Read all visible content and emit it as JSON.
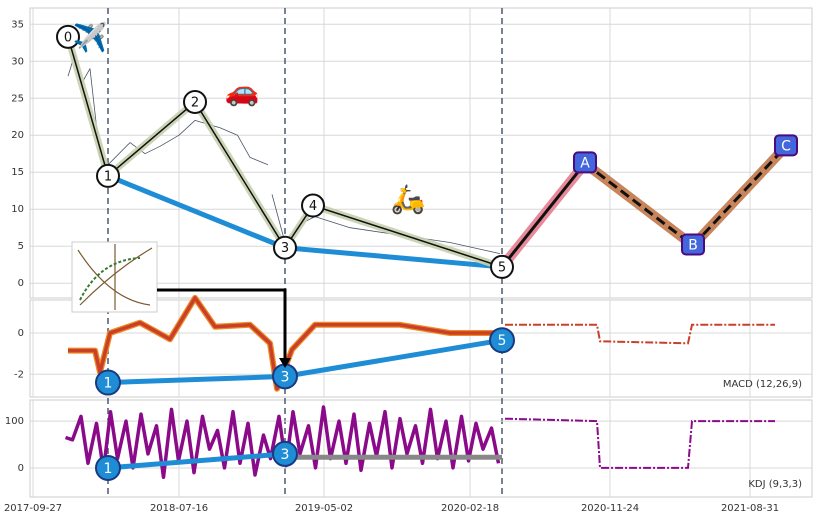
{
  "chart_data": [
    {
      "type": "line",
      "panel": "price",
      "xlim": [
        "2017-09-21",
        "2022-01-02"
      ],
      "ylim": [
        -2,
        37.2
      ],
      "yticks": [
        0,
        5,
        10,
        15,
        20,
        25,
        30,
        35
      ],
      "grid": true,
      "x": [
        "2017-12-06",
        "2017-12-20",
        "2018-01-02",
        "2018-01-19",
        "2018-02-08",
        "2018-02-24",
        "2018-04-09",
        "2018-05-09",
        "2018-06-08",
        "2018-07-16",
        "2018-08-17",
        "2018-10-06",
        "2018-11-10",
        "2018-12-05",
        "2019-01-10",
        "2019-01-12",
        "2019-01-18",
        "2019-02-13",
        "2019-03-15",
        "2019-04-14",
        "2019-06-23",
        "2019-10-01",
        "2020-01-09",
        "2020-04-18"
      ],
      "values": [
        28,
        31,
        27,
        29,
        17,
        16,
        19,
        17.5,
        18.5,
        20,
        22,
        21,
        20,
        17,
        16,
        null,
        12,
        5.5,
        8,
        9,
        7.5,
        6.5,
        5.5,
        4
      ],
      "color": "#4a5565",
      "waves": {
        "labels": [
          "0",
          "1",
          "2",
          "3",
          "4",
          "5"
        ],
        "x": [
          "2017-12-06",
          "2018-02-24",
          "2018-08-17",
          "2019-02-13",
          "2019-04-10",
          "2020-04-22"
        ],
        "values": [
          33.3,
          14.5,
          24.5,
          4.8,
          10.5,
          2.2
        ]
      },
      "projection": {
        "labels": [
          "A",
          "B",
          "C"
        ],
        "x": [
          "2020-10-05",
          "2021-05-09",
          "2021-11-11"
        ],
        "values": [
          16.2,
          5.1,
          18.5
        ]
      },
      "icons": [
        {
          "text": "✈️",
          "x": "2018-01-19",
          "value": 33
        },
        {
          "text": "🚗",
          "x": "2018-11-19",
          "value": 25.8
        },
        {
          "text": "🛵",
          "x": "2019-10-17",
          "value": 11.2
        }
      ]
    },
    {
      "type": "line",
      "panel": "macd",
      "label": "MACD (12,26,9)",
      "xlim": [
        "2017-09-21",
        "2022-01-02"
      ],
      "ylim": [
        -3.1,
        1.6
      ],
      "yticks": [
        -2,
        0
      ],
      "grid": true,
      "x": [
        "2017-12-06",
        "2018-01-29",
        "2018-02-08",
        "2018-02-28",
        "2018-04-29",
        "2018-06-28",
        "2018-08-17",
        "2018-09-26",
        "2018-12-05",
        "2019-01-14",
        "2019-01-28",
        "2019-02-27",
        "2019-04-14",
        "2019-10-01",
        "2020-01-09",
        "2020-04-18"
      ],
      "values": [
        -0.85,
        -0.85,
        -1.9,
        0,
        0.5,
        -0.3,
        1.7,
        0.3,
        0.4,
        -0.5,
        -2.7,
        -0.8,
        0.4,
        0.4,
        0,
        0
      ],
      "color": "#c8402a",
      "forecast": {
        "x": [
          "2020-04-28",
          "2020-10-29",
          "2020-11-04",
          "2021-04-29",
          "2021-05-07",
          "2021-10-20"
        ],
        "values": [
          0.4,
          0.4,
          -0.4,
          -0.5,
          0.4,
          0.4
        ]
      },
      "markers": {
        "labels": [
          "1",
          "3",
          "5"
        ],
        "x": [
          "2018-02-24",
          "2019-02-13",
          "2020-04-22"
        ],
        "values": [
          -2.4,
          -2.1,
          -0.35
        ]
      }
    },
    {
      "type": "line",
      "panel": "kdj",
      "label": "KDJ (9,3,3)",
      "xlim": [
        "2017-09-21",
        "2022-01-02"
      ],
      "ylim": [
        -62,
        145
      ],
      "yticks": [
        0,
        100
      ],
      "grid": true,
      "xticks": [
        "2017-09-27",
        "2018-07-16",
        "2019-05-02",
        "2020-02-18",
        "2020-11-24",
        "2021-08-31"
      ],
      "x": [
        "2017-12-01",
        "2017-12-15",
        "2018-01-01",
        "2018-01-15",
        "2018-02-01",
        "2018-02-15",
        "2018-03-01",
        "2018-03-15",
        "2018-04-01",
        "2018-04-15",
        "2018-05-01",
        "2018-05-15",
        "2018-06-01",
        "2018-06-15",
        "2018-07-01",
        "2018-07-15",
        "2018-08-01",
        "2018-08-15",
        "2018-09-01",
        "2018-09-15",
        "2018-10-01",
        "2018-10-15",
        "2018-11-01",
        "2018-11-15",
        "2018-12-01",
        "2018-12-15",
        "2019-01-01",
        "2019-01-15",
        "2019-02-01",
        "2019-02-15",
        "2019-03-01",
        "2019-03-15",
        "2019-04-01",
        "2019-04-15",
        "2019-05-01",
        "2019-05-15",
        "2019-06-01",
        "2019-06-15",
        "2019-07-01",
        "2019-07-15",
        "2019-08-01",
        "2019-08-15",
        "2019-09-01",
        "2019-09-15",
        "2019-10-01",
        "2019-10-15",
        "2019-11-01",
        "2019-11-15",
        "2019-12-01",
        "2019-12-15",
        "2020-01-01",
        "2020-01-15",
        "2020-02-01",
        "2020-02-15",
        "2020-03-01",
        "2020-03-15",
        "2020-04-01",
        "2020-04-15"
      ],
      "values": [
        65,
        60,
        110,
        10,
        95,
        -5,
        120,
        20,
        100,
        0,
        115,
        30,
        90,
        -20,
        125,
        15,
        100,
        -10,
        110,
        40,
        80,
        0,
        120,
        10,
        95,
        -15,
        70,
        20,
        110,
        5,
        120,
        30,
        90,
        0,
        130,
        20,
        100,
        10,
        115,
        -5,
        95,
        25,
        120,
        0,
        105,
        30,
        90,
        10,
        125,
        20,
        100,
        0,
        110,
        15,
        95,
        40,
        85,
        10
      ],
      "color": "#8a0a8a",
      "forecast": {
        "x": [
          "2020-04-28",
          "2020-10-29",
          "2020-11-04",
          "2021-04-29",
          "2021-05-07",
          "2021-10-20"
        ],
        "values": [
          105,
          100,
          0,
          0,
          100,
          100
        ]
      },
      "markers": {
        "labels": [
          "1",
          "3"
        ],
        "x": [
          "2018-02-24",
          "2019-02-13"
        ],
        "values": [
          0,
          30
        ]
      },
      "guide": {
        "x": [
          "2019-02-13",
          "2020-04-22"
        ],
        "values": [
          23,
          23
        ]
      }
    }
  ]
}
